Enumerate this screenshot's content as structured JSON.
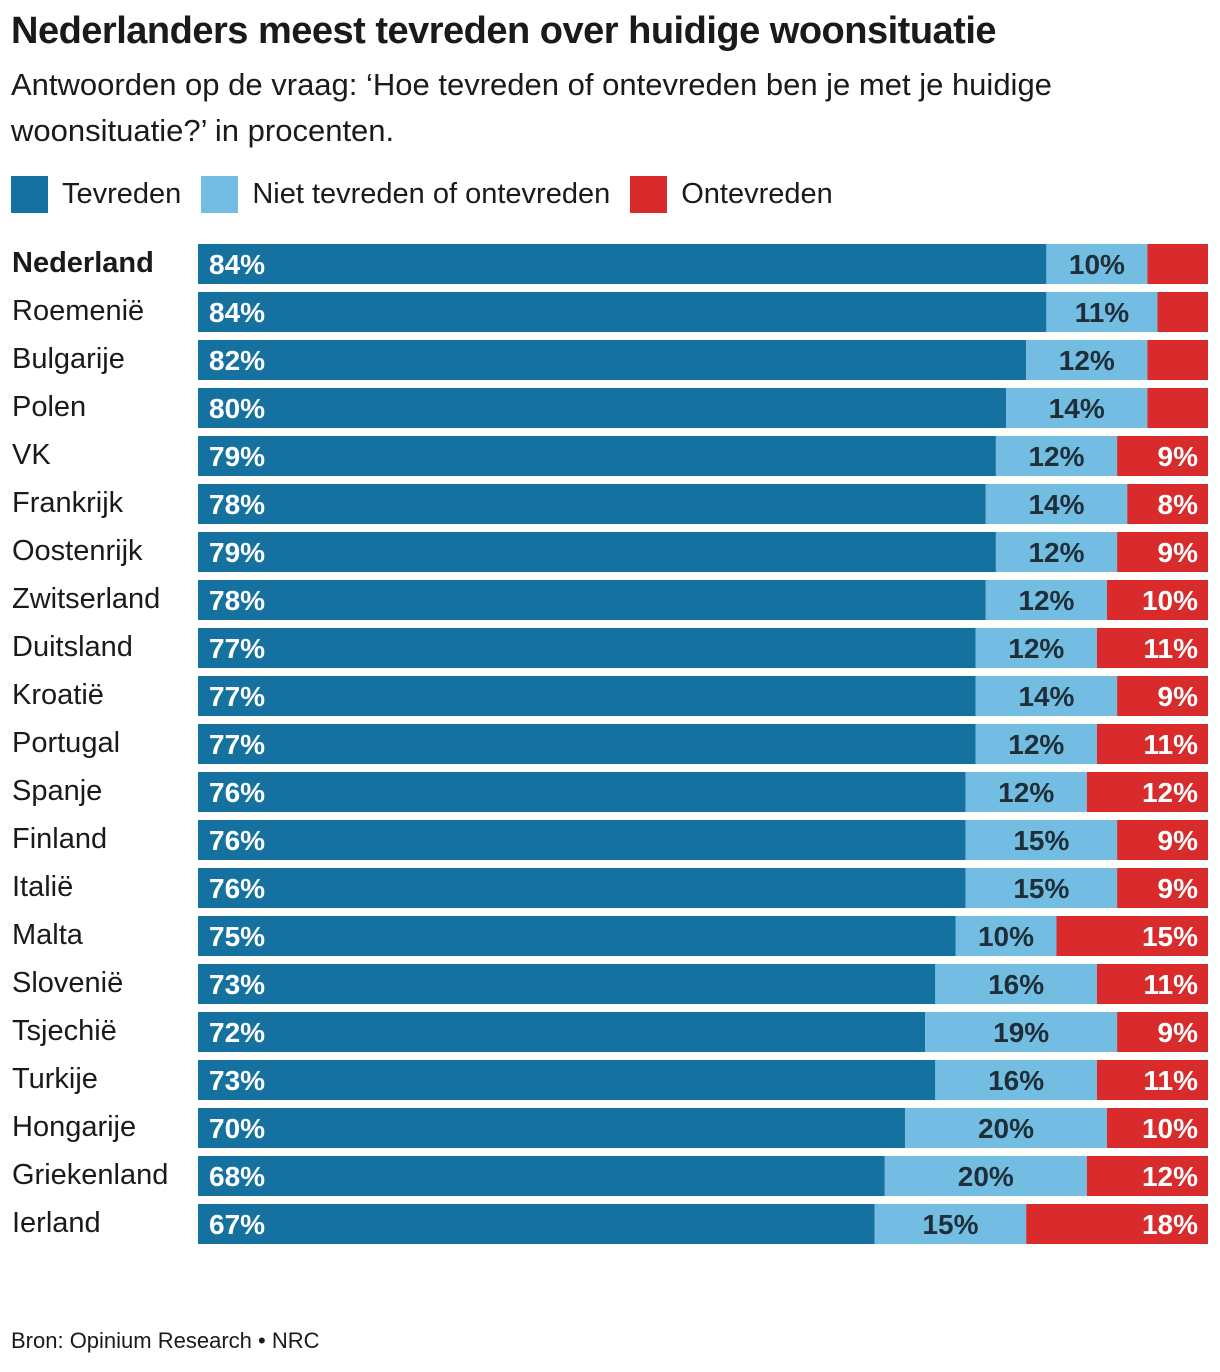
{
  "title": "Nederlanders meest tevreden over huidige woonsituatie",
  "subtitle": "Antwoorden op de vraag: ‘Hoe tevreden of ontevreden ben je met je huidige woonsituatie?’ in procenten.",
  "legend": [
    {
      "label": "Tevreden",
      "color": "#1471a0"
    },
    {
      "label": "Niet tevreden of ontevreden",
      "color": "#74bde2"
    },
    {
      "label": "Ontevreden",
      "color": "#d92b2b"
    }
  ],
  "source": {
    "label": "Bron: Opinium Research",
    "separator": "•",
    "publisher": "NRC"
  },
  "chart_data": {
    "type": "bar",
    "orientation": "horizontal",
    "stacked": true,
    "unit": "%",
    "highlight": "Nederland",
    "xlim": [
      0,
      100
    ],
    "categories": [
      "Nederland",
      "Roemenië",
      "Bulgarije",
      "Polen",
      "VK",
      "Frankrijk",
      "Oostenrijk",
      "Zwitserland",
      "Duitsland",
      "Kroatië",
      "Portugal",
      "Spanje",
      "Finland",
      "Italië",
      "Malta",
      "Slovenië",
      "Tsjechië",
      "Turkije",
      "Hongarije",
      "Griekenland",
      "Ierland"
    ],
    "series": [
      {
        "name": "Tevreden",
        "color": "#1471a0",
        "label_color": "#ffffff",
        "values": [
          84,
          84,
          82,
          80,
          79,
          78,
          79,
          78,
          77,
          77,
          77,
          76,
          76,
          76,
          75,
          73,
          72,
          73,
          70,
          68,
          67
        ],
        "show_labels": [
          true,
          true,
          true,
          true,
          true,
          true,
          true,
          true,
          true,
          true,
          true,
          true,
          true,
          true,
          true,
          true,
          true,
          true,
          true,
          true,
          true
        ]
      },
      {
        "name": "Niet tevreden of ontevreden",
        "color": "#74bde2",
        "label_color": "#1f2f3a",
        "values": [
          10,
          11,
          12,
          14,
          12,
          14,
          12,
          12,
          12,
          14,
          12,
          12,
          15,
          15,
          10,
          16,
          19,
          16,
          20,
          20,
          15
        ],
        "show_labels": [
          true,
          true,
          true,
          true,
          true,
          true,
          true,
          true,
          true,
          true,
          true,
          true,
          true,
          true,
          true,
          true,
          true,
          true,
          true,
          true,
          true
        ]
      },
      {
        "name": "Ontevreden",
        "color": "#d92b2b",
        "label_color": "#ffffff",
        "values": [
          6,
          5,
          6,
          6,
          9,
          8,
          9,
          10,
          11,
          9,
          11,
          12,
          9,
          9,
          15,
          11,
          9,
          11,
          10,
          12,
          18
        ],
        "show_labels": [
          false,
          false,
          false,
          false,
          true,
          true,
          true,
          true,
          true,
          true,
          true,
          true,
          true,
          true,
          true,
          true,
          true,
          true,
          true,
          true,
          true
        ]
      }
    ]
  }
}
